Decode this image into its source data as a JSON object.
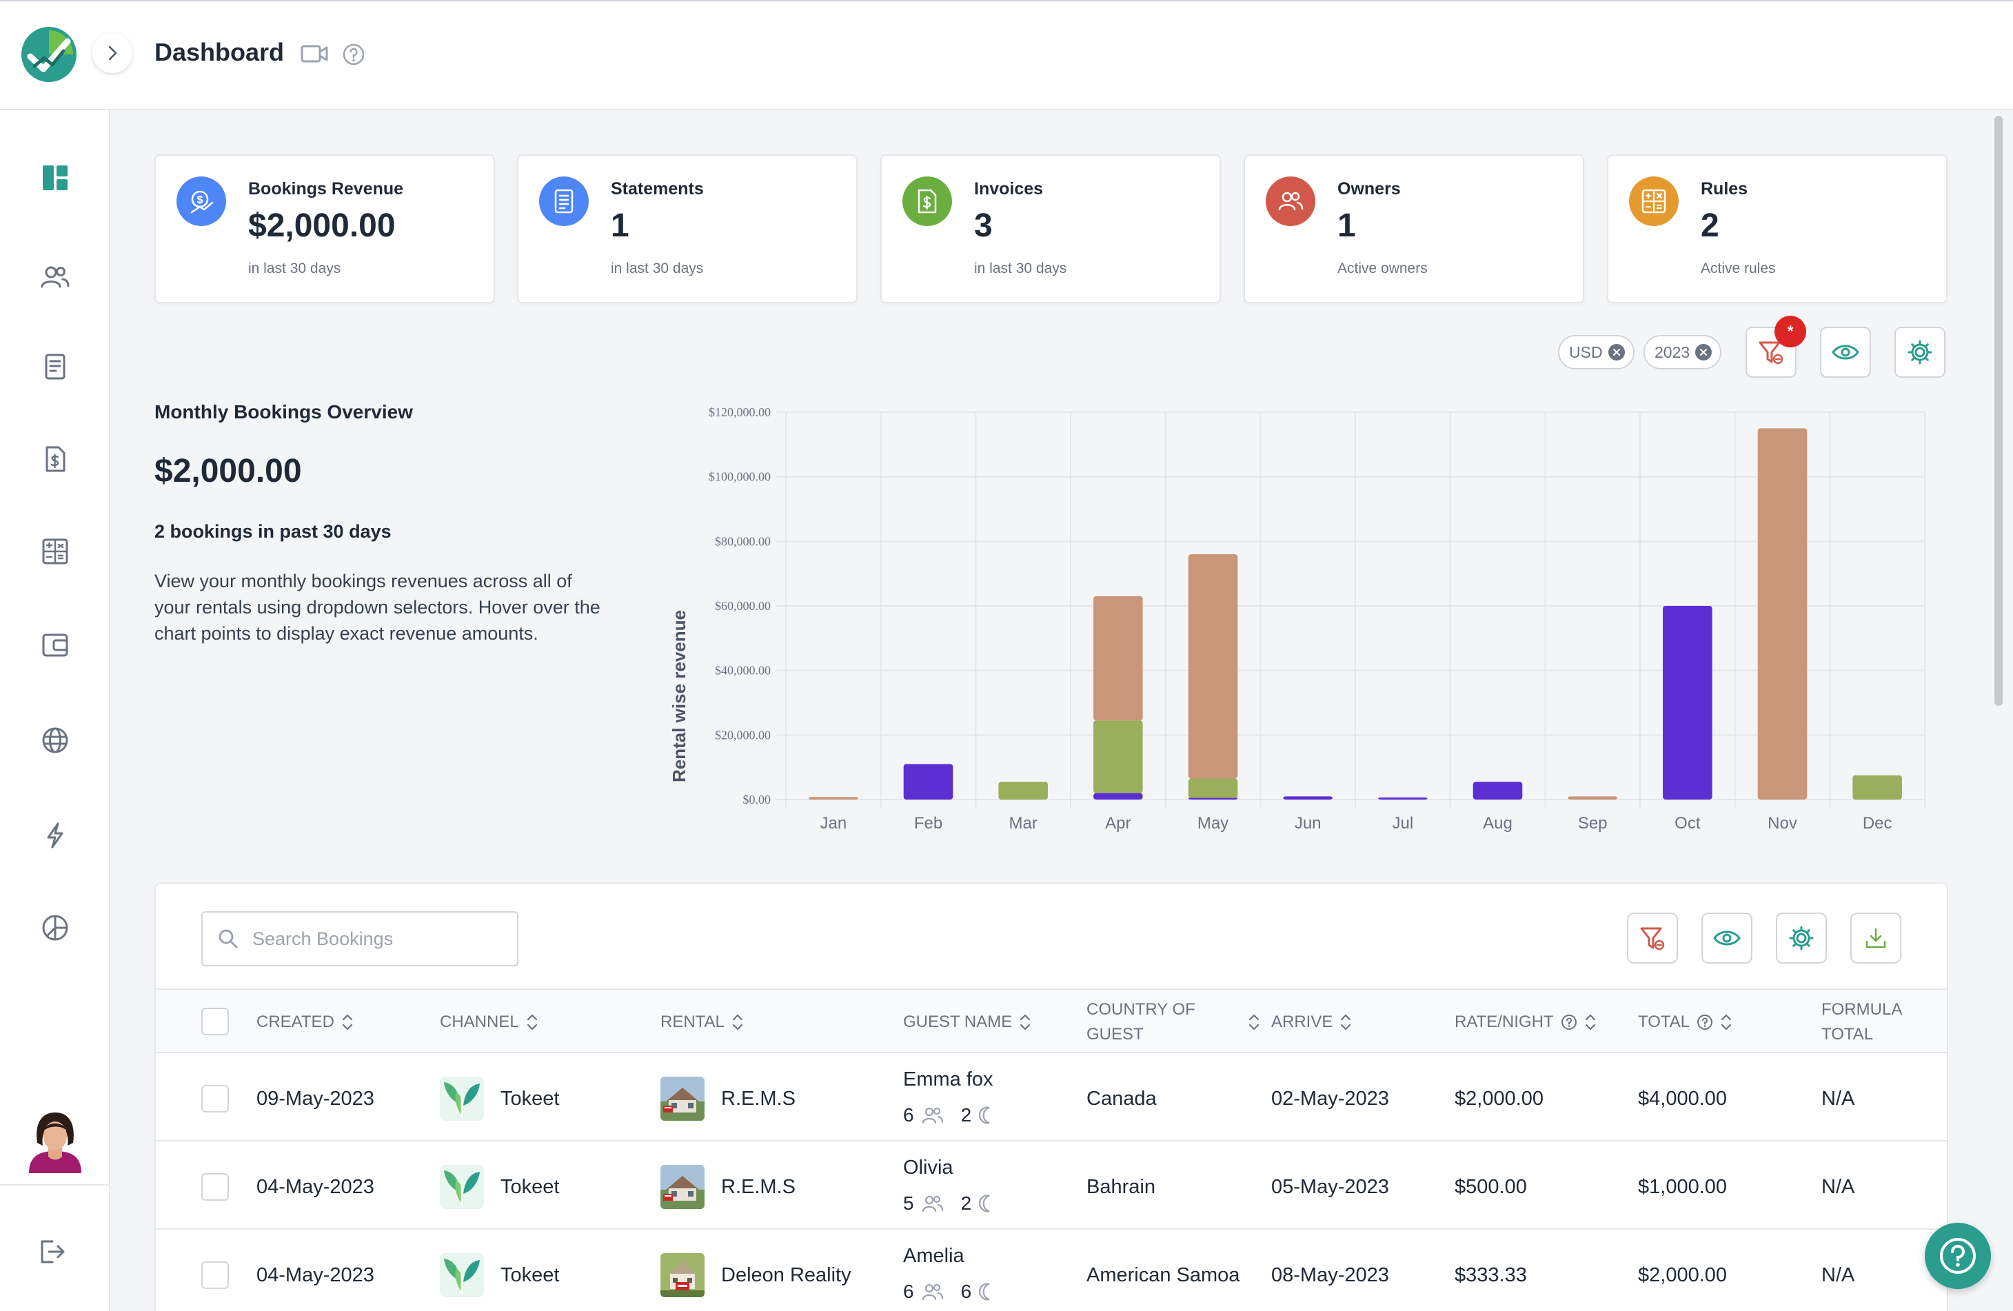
{
  "header": {
    "title": "Dashboard"
  },
  "cards": [
    {
      "title": "Bookings Revenue",
      "value": "$2,000.00",
      "sub": "in last 30 days",
      "icon": "dollar-trend-icon",
      "color": "#4f86f7"
    },
    {
      "title": "Statements",
      "value": "1",
      "sub": "in last 30 days",
      "icon": "statement-icon",
      "color": "#4f86f7"
    },
    {
      "title": "Invoices",
      "value": "3",
      "sub": "in last 30 days",
      "icon": "invoice-icon",
      "color": "#6aae3f"
    },
    {
      "title": "Owners",
      "value": "1",
      "sub": "Active owners",
      "icon": "owners-icon",
      "color": "#d1584a"
    },
    {
      "title": "Rules",
      "value": "2",
      "sub": "Active rules",
      "icon": "rules-icon",
      "color": "#e59a2e"
    }
  ],
  "filters": {
    "currency": "USD",
    "year": "2023",
    "badge": "*"
  },
  "overview": {
    "title": "Monthly Bookings Overview",
    "value": "$2,000.00",
    "count": "2 bookings in past 30 days",
    "description": "View your monthly bookings revenues across all of your rentals using dropdown selectors. Hover over the chart points to display exact revenue amounts."
  },
  "chart_data": {
    "type": "bar",
    "stacked": true,
    "ylabel": "Rental wise revenue",
    "ylim": [
      0,
      120000
    ],
    "yticks": [
      "$0.00",
      "$20,000.00",
      "$40,000.00",
      "$60,000.00",
      "$80,000.00",
      "$100,000.00",
      "$120,000.00"
    ],
    "grid": true,
    "categories": [
      "Jan",
      "Feb",
      "Mar",
      "Apr",
      "May",
      "Jun",
      "Jul",
      "Aug",
      "Sep",
      "Oct",
      "Nov",
      "Dec"
    ],
    "series": [
      {
        "color": "#5b2fd1",
        "values": [
          0,
          11000,
          0,
          2000,
          500,
          1000,
          500,
          5500,
          0,
          60000,
          0,
          0
        ]
      },
      {
        "color": "#9aae5c",
        "values": [
          0,
          0,
          5500,
          22500,
          6000,
          0,
          0,
          0,
          0,
          0,
          0,
          7500
        ]
      },
      {
        "color": "#c9967a",
        "values": [
          800,
          0,
          0,
          38500,
          69500,
          0,
          0,
          0,
          1000,
          0,
          115000,
          0
        ]
      }
    ]
  },
  "table": {
    "search_placeholder": "Search Bookings",
    "columns": {
      "created": "CREATED",
      "channel": "CHANNEL",
      "rental": "RENTAL",
      "guest": "GUEST NAME",
      "country_1": "COUNTRY OF",
      "country_2": "GUEST",
      "arrive": "ARRIVE",
      "rate": "RATE/NIGHT",
      "total": "TOTAL",
      "formula_1": "FORMULA",
      "formula_2": "TOTAL"
    },
    "rows": [
      {
        "created": "09-May-2023",
        "channel": "Tokeet",
        "rental": "R.E.M.S",
        "guest": "Emma fox",
        "guests": "6",
        "nights": "2",
        "country": "Canada",
        "arrive": "02-May-2023",
        "rate": "$2,000.00",
        "total": "$4,000.00",
        "formula": "N/A"
      },
      {
        "created": "04-May-2023",
        "channel": "Tokeet",
        "rental": "R.E.M.S",
        "guest": "Olivia",
        "guests": "5",
        "nights": "2",
        "country": "Bahrain",
        "arrive": "05-May-2023",
        "rate": "$500.00",
        "total": "$1,000.00",
        "formula": "N/A"
      },
      {
        "created": "04-May-2023",
        "channel": "Tokeet",
        "rental": "Deleon Reality",
        "guest": "Amelia",
        "guests": "6",
        "nights": "6",
        "country": "American Samoa",
        "arrive": "08-May-2023",
        "rate": "$333.33",
        "total": "$2,000.00",
        "formula": "N/A"
      }
    ]
  }
}
